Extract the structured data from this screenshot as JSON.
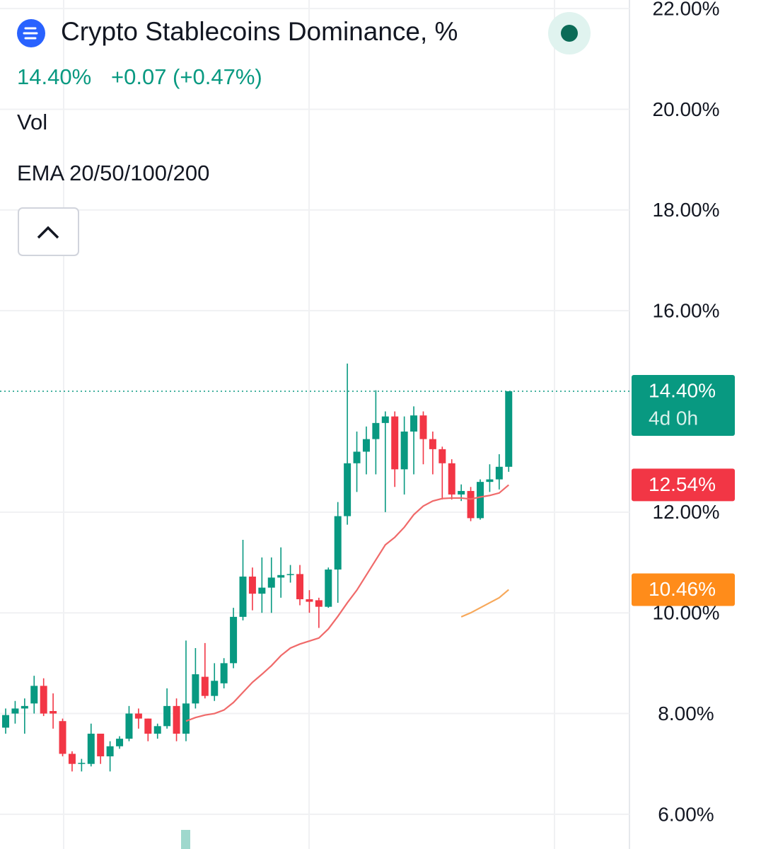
{
  "header": {
    "title": "Crypto Stablecoins Dominance, %",
    "price": "14.40%",
    "change": "+0.07 (+0.47%)",
    "indicators": [
      "Vol",
      "EMA 20/50/100/200"
    ]
  },
  "chart_data": {
    "type": "candlestick",
    "up_color": "#089981",
    "down_color": "#f23645",
    "open": [
      7.72,
      8.0,
      8.1,
      8.2,
      8.55,
      8.05,
      7.85,
      7.2,
      7.0,
      7.0,
      7.6,
      7.15,
      7.35,
      7.5,
      8.0,
      7.9,
      7.6,
      7.75,
      8.15,
      7.6,
      8.2,
      8.73,
      8.35,
      8.6,
      9.0,
      9.92,
      10.72,
      10.38,
      10.5,
      10.7,
      10.75,
      10.77,
      10.27,
      10.25,
      10.12,
      10.86,
      11.92,
      12.97,
      13.2,
      13.45,
      13.77,
      13.9,
      12.85,
      13.6,
      13.92,
      13.45,
      13.25,
      12.97,
      12.35,
      12.42,
      11.88,
      12.6,
      12.65,
      12.9
    ],
    "high": [
      8.1,
      8.25,
      8.3,
      8.75,
      8.7,
      8.4,
      7.9,
      7.25,
      7.1,
      7.8,
      7.6,
      7.45,
      7.55,
      8.15,
      8.1,
      7.9,
      7.8,
      8.5,
      8.3,
      9.45,
      9.3,
      9.4,
      9.0,
      9.1,
      10.1,
      11.45,
      10.9,
      11.1,
      11.1,
      11.3,
      10.95,
      10.95,
      10.45,
      10.3,
      10.9,
      12.2,
      14.95,
      13.6,
      13.7,
      14.42,
      14.0,
      14.0,
      13.9,
      14.1,
      14.0,
      13.6,
      13.3,
      13.05,
      12.55,
      12.5,
      12.65,
      12.95,
      13.15,
      14.4
    ],
    "low": [
      7.6,
      7.8,
      7.6,
      8.0,
      7.95,
      7.7,
      7.15,
      6.85,
      6.85,
      6.95,
      7.0,
      6.85,
      7.3,
      7.45,
      7.7,
      7.45,
      7.5,
      7.7,
      7.45,
      7.45,
      8.1,
      8.3,
      8.25,
      8.5,
      8.9,
      9.85,
      10.05,
      10.0,
      10.0,
      10.3,
      10.6,
      10.15,
      10.0,
      9.7,
      10.1,
      10.2,
      11.75,
      12.4,
      12.75,
      12.75,
      12.0,
      12.5,
      12.35,
      12.75,
      12.95,
      12.75,
      12.25,
      12.25,
      12.22,
      11.82,
      11.85,
      12.4,
      12.45,
      12.8
    ],
    "close": [
      7.97,
      8.1,
      8.15,
      8.55,
      8.0,
      8.0,
      7.2,
      7.0,
      7.02,
      7.6,
      7.15,
      7.35,
      7.5,
      8.0,
      7.9,
      7.6,
      7.75,
      8.15,
      7.6,
      8.2,
      8.78,
      8.35,
      8.65,
      9.0,
      9.92,
      10.72,
      10.38,
      10.5,
      10.7,
      10.75,
      10.77,
      10.27,
      10.22,
      10.12,
      10.86,
      11.92,
      12.97,
      13.2,
      13.45,
      13.77,
      13.9,
      12.85,
      13.6,
      13.92,
      13.45,
      13.25,
      12.97,
      12.35,
      12.42,
      11.88,
      12.6,
      12.65,
      12.9,
      14.4
    ],
    "overlays": [
      {
        "color": "#f06a6a",
        "values": [
          null,
          null,
          null,
          null,
          null,
          null,
          null,
          null,
          null,
          null,
          null,
          null,
          null,
          null,
          null,
          null,
          null,
          null,
          null,
          7.85,
          7.92,
          7.97,
          8.0,
          8.07,
          8.22,
          8.42,
          8.62,
          8.78,
          8.95,
          9.15,
          9.3,
          9.38,
          9.44,
          9.5,
          9.68,
          9.93,
          10.2,
          10.45,
          10.75,
          11.05,
          11.35,
          11.5,
          11.7,
          11.95,
          12.12,
          12.22,
          12.27,
          12.28,
          12.28,
          12.26,
          12.3,
          12.33,
          12.38,
          12.54
        ]
      },
      {
        "color": "#f7a85a",
        "values": [
          null,
          null,
          null,
          null,
          null,
          null,
          null,
          null,
          null,
          null,
          null,
          null,
          null,
          null,
          null,
          null,
          null,
          null,
          null,
          null,
          null,
          null,
          null,
          null,
          null,
          null,
          null,
          null,
          null,
          null,
          null,
          null,
          null,
          null,
          null,
          null,
          null,
          null,
          null,
          null,
          null,
          null,
          null,
          null,
          null,
          null,
          null,
          null,
          9.92,
          10.0,
          10.1,
          10.2,
          10.3,
          10.46
        ]
      }
    ],
    "price_badges": [
      {
        "value": 14.4,
        "label": "14.40%",
        "sublabel": "4d 0h",
        "color": "#089981"
      },
      {
        "value": 12.54,
        "label": "12.54%",
        "color": "#f23645"
      },
      {
        "value": 10.46,
        "label": "10.46%",
        "color": "#ff8c1a"
      }
    ],
    "ylim": [
      5.31,
      22.17
    ],
    "yticks": [
      {
        "value": 6,
        "label": "6.00%"
      },
      {
        "value": 8,
        "label": "8.00%"
      },
      {
        "value": 10,
        "label": "10.00%"
      },
      {
        "value": 12,
        "label": "12.00%"
      },
      {
        "value": 16,
        "label": "16.00%"
      },
      {
        "value": 18,
        "label": "18.00%"
      },
      {
        "value": 20,
        "label": "20.00%"
      },
      {
        "value": 22,
        "label": "22.00%"
      }
    ],
    "grid": true
  }
}
